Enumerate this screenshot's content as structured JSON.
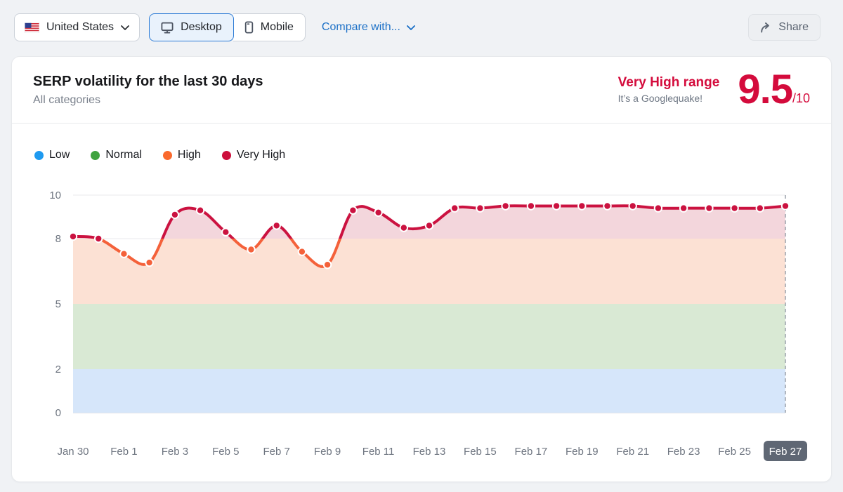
{
  "toolbar": {
    "country": {
      "label": "United States"
    },
    "device_tabs": [
      {
        "label": "Desktop",
        "selected": true
      },
      {
        "label": "Mobile",
        "selected": false
      }
    ],
    "compare_label": "Compare with...",
    "share_label": "Share"
  },
  "header": {
    "title": "SERP volatility for the last 30 days",
    "subtitle": "All categories",
    "range_label": "Very High range",
    "range_note": "It’s a Googlequake!",
    "score": "9.5",
    "score_max": "/10"
  },
  "legend": [
    {
      "label": "Low",
      "color": "#1e9af0"
    },
    {
      "label": "Normal",
      "color": "#3fa33f"
    },
    {
      "label": "High",
      "color": "#fa692d"
    },
    {
      "label": "Very High",
      "color": "#cd0f3c"
    }
  ],
  "chart_data": {
    "type": "line",
    "title": "SERP volatility for the last 30 days",
    "x": [
      "Jan 30",
      "Jan 31",
      "Feb 1",
      "Feb 2",
      "Feb 3",
      "Feb 4",
      "Feb 5",
      "Feb 6",
      "Feb 7",
      "Feb 8",
      "Feb 9",
      "Feb 10",
      "Feb 11",
      "Feb 12",
      "Feb 13",
      "Feb 14",
      "Feb 15",
      "Feb 16",
      "Feb 17",
      "Feb 18",
      "Feb 19",
      "Feb 20",
      "Feb 21",
      "Feb 22",
      "Feb 23",
      "Feb 24",
      "Feb 25",
      "Feb 26",
      "Feb 27"
    ],
    "values": [
      8.1,
      8.0,
      7.3,
      6.9,
      9.1,
      9.3,
      8.3,
      7.5,
      8.6,
      7.4,
      6.8,
      9.3,
      9.2,
      8.5,
      8.6,
      9.4,
      9.4,
      9.5,
      9.5,
      9.5,
      9.5,
      9.5,
      9.5,
      9.4,
      9.4,
      9.4,
      9.4,
      9.4,
      9.5
    ],
    "ylim": [
      0,
      10
    ],
    "yticks": [
      0,
      2,
      5,
      8,
      10
    ],
    "x_tick_every": 2,
    "grid": true,
    "legend_position": "top-left",
    "bands": [
      {
        "label": "Low",
        "from": 0,
        "to": 2,
        "fill": "#d6e6fa"
      },
      {
        "label": "Normal",
        "from": 2,
        "to": 5,
        "fill": "#d9e9d4"
      },
      {
        "label": "High",
        "from": 5,
        "to": 8,
        "fill": "#fce1d4"
      },
      {
        "label": "Very High",
        "from": 8,
        "to": 10,
        "fill": "#f3d6dc"
      }
    ],
    "threshold": 8,
    "line_colors": {
      "high": "#f4613a",
      "very_high": "#cb1240"
    },
    "axis_color": "#6e7580",
    "grid_color": "#e8eaed",
    "baseline_color": "#c9ced5",
    "marker_line_color": "#949ba5",
    "x_highlight": {
      "label": "Feb 27",
      "bg": "#5f6774",
      "fg": "#ffffff"
    }
  }
}
